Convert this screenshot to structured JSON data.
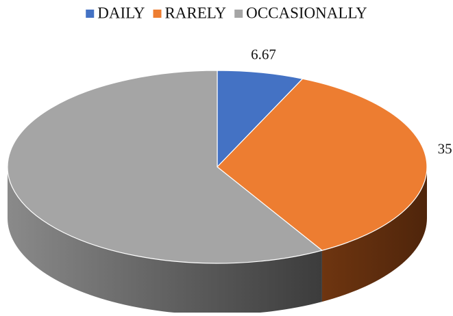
{
  "chart_data": {
    "type": "pie",
    "title": "",
    "categories": [
      "DAILY",
      "RARELY",
      "OCCASIONALLY"
    ],
    "values": [
      6.67,
      35.0,
      58.33
    ],
    "data_labels": [
      "6.67",
      "35.00",
      "58.33"
    ],
    "colors": [
      "#4472C4",
      "#ED7D31",
      "#A5A5A5"
    ],
    "legend_position": "top",
    "style": "3d"
  }
}
